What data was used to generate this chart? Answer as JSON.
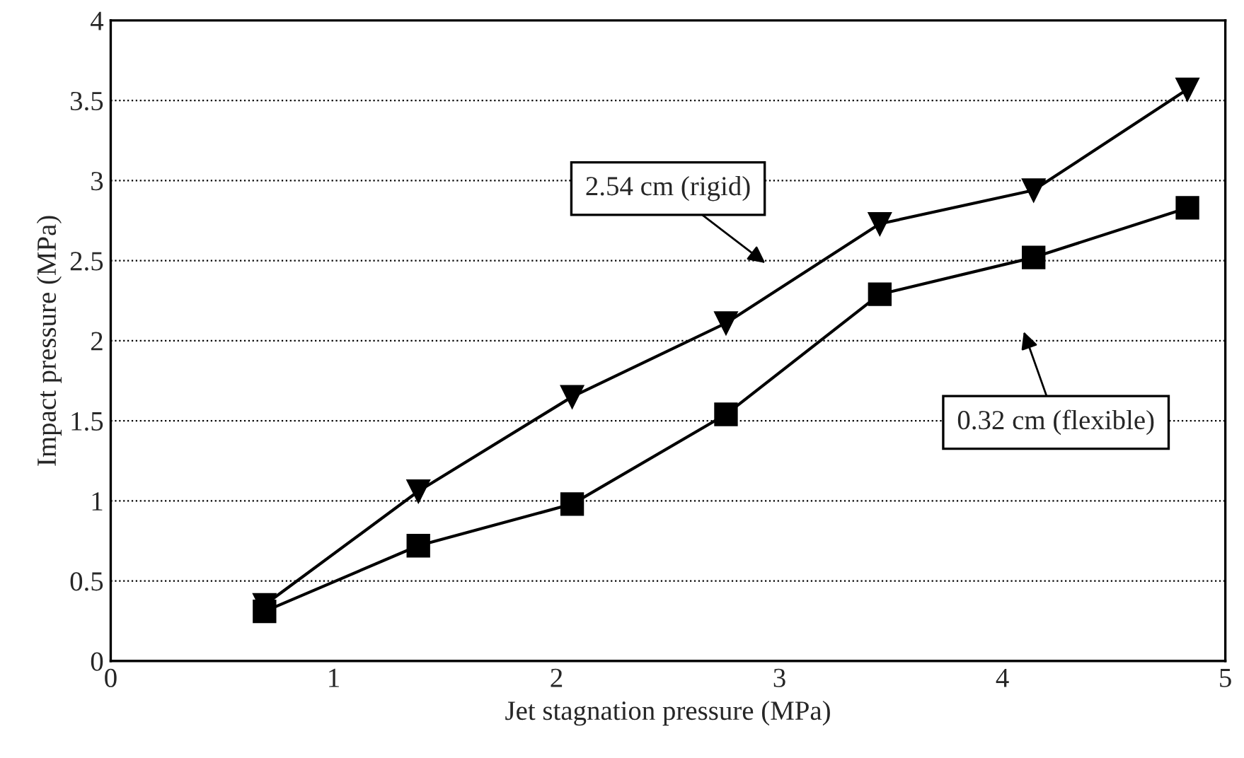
{
  "chart_data": {
    "type": "line",
    "xlabel": "Jet stagnation pressure (MPa)",
    "ylabel": "Impact pressure (MPa)",
    "xlim": [
      0,
      5
    ],
    "xticks": [
      0,
      1,
      2,
      3,
      4,
      5
    ],
    "ylim": [
      0,
      4
    ],
    "yticks": [
      0,
      0.5,
      1,
      1.5,
      2,
      2.5,
      3,
      3.5,
      4
    ],
    "grid": "y",
    "legend": false,
    "series": [
      {
        "name": "2.54 cm (rigid)",
        "color": "#000000",
        "marker": "triangle",
        "x": [
          0.69,
          1.38,
          2.07,
          2.76,
          3.45,
          4.14,
          4.83
        ],
        "values": [
          0.35,
          1.06,
          1.65,
          2.11,
          2.73,
          2.94,
          3.57
        ]
      },
      {
        "name": "0.32 cm (flexible)",
        "color": "#000000",
        "marker": "square",
        "x": [
          0.69,
          1.38,
          2.07,
          2.76,
          3.45,
          4.14,
          4.83
        ],
        "values": [
          0.31,
          0.72,
          0.98,
          1.54,
          2.29,
          2.52,
          2.83
        ]
      }
    ]
  }
}
